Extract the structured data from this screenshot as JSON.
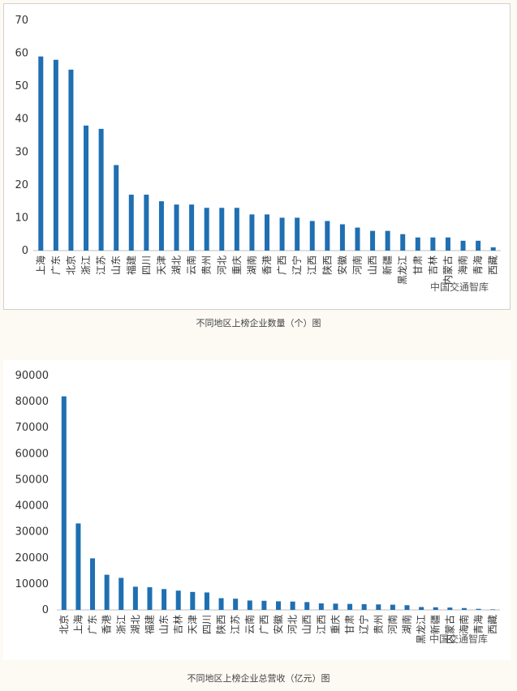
{
  "captions": {
    "chart1": "不同地区上榜企业数量（个）图",
    "chart2": "不同地区上榜企业总营收（亿元）图"
  },
  "watermark": "中国交通智库",
  "colors": {
    "bar": "#1f6fb2",
    "axis": "#bfbfbf"
  },
  "chart_data": [
    {
      "type": "bar",
      "title": "",
      "xlabel": "",
      "ylabel": "",
      "ylim": [
        0,
        70
      ],
      "yticks": [
        0,
        10,
        20,
        30,
        40,
        50,
        60,
        70
      ],
      "grid": false,
      "categories": [
        "上海",
        "广东",
        "北京",
        "浙江",
        "江苏",
        "山东",
        "福建",
        "四川",
        "天津",
        "湖北",
        "云南",
        "贵州",
        "河北",
        "重庆",
        "湖南",
        "香港",
        "广西",
        "辽宁",
        "江西",
        "陕西",
        "安徽",
        "河南",
        "山西",
        "新疆",
        "黑龙江",
        "甘肃",
        "吉林",
        "内蒙古",
        "海南",
        "青海",
        "西藏"
      ],
      "values": [
        59,
        58,
        55,
        38,
        37,
        26,
        17,
        17,
        15,
        14,
        14,
        13,
        13,
        13,
        11,
        11,
        10,
        10,
        9,
        9,
        8,
        7,
        6,
        6,
        5,
        4,
        4,
        4,
        3,
        3,
        1
      ]
    },
    {
      "type": "bar",
      "title": "",
      "xlabel": "",
      "ylabel": "",
      "ylim": [
        0,
        90000
      ],
      "yticks": [
        0,
        10000,
        20000,
        30000,
        40000,
        50000,
        60000,
        70000,
        80000,
        90000
      ],
      "grid": false,
      "categories": [
        "北京",
        "上海",
        "广东",
        "香港",
        "浙江",
        "湖北",
        "福建",
        "山东",
        "吉林",
        "天津",
        "四川",
        "陕西",
        "江苏",
        "云南",
        "广西",
        "安徽",
        "河北",
        "山西",
        "江西",
        "重庆",
        "甘肃",
        "辽宁",
        "贵州",
        "河南",
        "湖南",
        "黑龙江",
        "新疆",
        "内蒙古",
        "海南",
        "青海",
        "西藏"
      ],
      "values": [
        82000,
        33200,
        19800,
        13500,
        12300,
        8900,
        8700,
        8000,
        7400,
        6900,
        6700,
        4500,
        4300,
        3600,
        3500,
        3300,
        3200,
        3000,
        2500,
        2400,
        2300,
        2200,
        2100,
        2000,
        1800,
        1100,
        1000,
        900,
        700,
        400,
        200
      ]
    }
  ]
}
